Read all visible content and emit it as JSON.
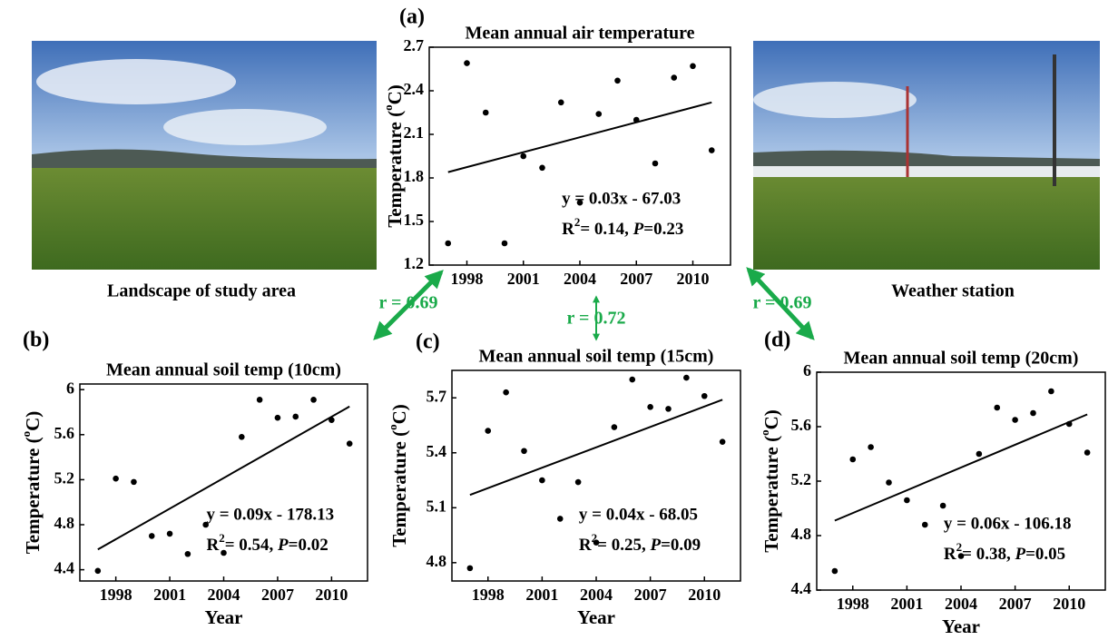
{
  "chart_data": [
    {
      "type": "scatter",
      "panel": "(a)",
      "title": "Mean annual air temperature",
      "y_label": [
        "Temperature (",
        "o",
        "C)"
      ],
      "x": [
        1997,
        1998,
        1999,
        2000,
        2001,
        2002,
        2003,
        2004,
        2005,
        2006,
        2007,
        2008,
        2009,
        2010,
        2011
      ],
      "values": [
        1.35,
        2.59,
        2.25,
        1.35,
        1.95,
        1.87,
        2.32,
        1.63,
        2.24,
        2.47,
        2.2,
        1.9,
        2.49,
        2.57,
        1.99
      ],
      "trend": {
        "x": [
          1997,
          2011
        ],
        "y": [
          1.84,
          2.32
        ]
      },
      "equation": "y = 0.03x - 67.03",
      "stats": [
        "R",
        "2",
        "= 0.14, ",
        "P",
        "=0.23"
      ],
      "xlim": [
        1996,
        2012
      ],
      "xticks": [
        1998,
        2001,
        2004,
        2007,
        2010
      ],
      "ylim": [
        1.2,
        2.7
      ],
      "yticks": [
        1.2,
        1.5,
        1.8,
        2.1,
        2.4,
        2.7
      ],
      "color": "#000000"
    },
    {
      "type": "scatter",
      "panel": "(b)",
      "title": "Mean annual soil temp (10cm)",
      "x_label": "Year",
      "y_label": [
        "Temperature (",
        "o",
        "C)"
      ],
      "x": [
        1997,
        1998,
        1999,
        2000,
        2001,
        2002,
        2003,
        2004,
        2005,
        2006,
        2007,
        2008,
        2009,
        2010,
        2011
      ],
      "values": [
        4.39,
        5.21,
        5.18,
        4.7,
        4.72,
        4.54,
        4.8,
        4.55,
        5.58,
        5.91,
        5.75,
        5.76,
        5.91,
        5.73,
        5.52
      ],
      "trend": {
        "x": [
          1997,
          2011
        ],
        "y": [
          4.58,
          5.85
        ]
      },
      "equation": "y = 0.09x - 178.13",
      "stats": [
        "R",
        "2",
        "= 0.54, ",
        "P",
        "=0.02"
      ],
      "xlim": [
        1996,
        2012
      ],
      "xticks": [
        1998,
        2001,
        2004,
        2007,
        2010
      ],
      "ylim": [
        4.3,
        6.05
      ],
      "yticks": [
        4.4,
        4.8,
        5.2,
        5.6,
        6.0
      ],
      "color": "#000000"
    },
    {
      "type": "scatter",
      "panel": "(c)",
      "title": "Mean annual soil temp (15cm)",
      "x_label": "Year",
      "y_label": [
        "Temperature (",
        "o",
        "C)"
      ],
      "x": [
        1997,
        1998,
        1999,
        2000,
        2001,
        2002,
        2003,
        2004,
        2005,
        2006,
        2007,
        2008,
        2009,
        2010,
        2011
      ],
      "values": [
        4.77,
        5.52,
        5.73,
        5.41,
        5.25,
        5.04,
        5.24,
        4.91,
        5.54,
        5.8,
        5.65,
        5.64,
        5.81,
        5.71,
        5.46
      ],
      "trend": {
        "x": [
          1997,
          2011
        ],
        "y": [
          5.17,
          5.69
        ]
      },
      "equation": "y = 0.04x - 68.05",
      "stats": [
        "R",
        "2",
        "= 0.25, ",
        "P",
        "=0.09"
      ],
      "xlim": [
        1996,
        2012
      ],
      "xticks": [
        1998,
        2001,
        2004,
        2007,
        2010
      ],
      "ylim": [
        4.7,
        5.85
      ],
      "yticks": [
        4.8,
        5.1,
        5.4,
        5.7
      ],
      "color": "#000000"
    },
    {
      "type": "scatter",
      "panel": "(d)",
      "title": "Mean annual soil temp (20cm)",
      "x_label": "Year",
      "y_label": [
        "Temperature (",
        "o",
        "C)"
      ],
      "x": [
        1997,
        1998,
        1999,
        2000,
        2001,
        2002,
        2003,
        2004,
        2005,
        2006,
        2007,
        2008,
        2009,
        2010,
        2011
      ],
      "values": [
        4.54,
        5.36,
        5.45,
        5.19,
        5.06,
        4.88,
        5.02,
        4.65,
        5.4,
        5.74,
        5.65,
        5.7,
        5.86,
        5.62,
        5.41
      ],
      "trend": {
        "x": [
          1997,
          2011
        ],
        "y": [
          4.91,
          5.69
        ]
      },
      "equation": "y = 0.06x - 106.18",
      "stats": [
        "R",
        "2",
        "= 0.38, ",
        "P",
        "=0.05"
      ],
      "xlim": [
        1996,
        2012
      ],
      "xticks": [
        1998,
        2001,
        2004,
        2007,
        2010
      ],
      "ylim": [
        4.4,
        6.0
      ],
      "yticks": [
        4.4,
        4.8,
        5.2,
        5.6,
        6.0
      ],
      "color": "#000000"
    }
  ],
  "photos": {
    "left": "Landscape of study area",
    "right": "Weather station"
  },
  "correlations": {
    "left": "r = 0.69",
    "middle": "r = 0.72",
    "right": "r = 0.69"
  }
}
